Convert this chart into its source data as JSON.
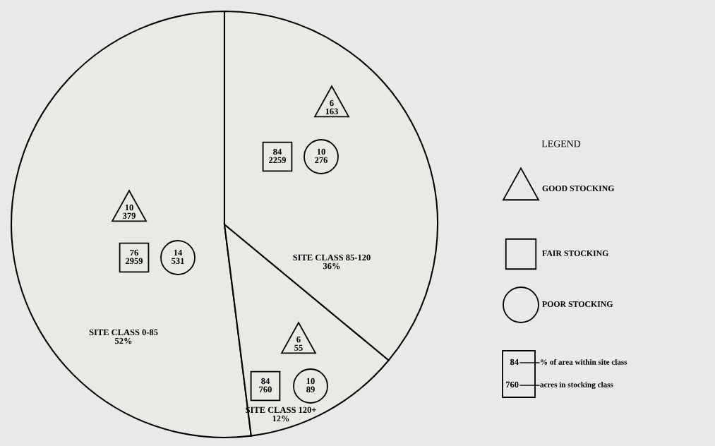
{
  "chart_data": {
    "type": "pie",
    "categories": [
      "SITE CLASS 0-85",
      "SITE CLASS 120+",
      "SITE CLASS 85-120"
    ],
    "values": [
      52,
      12,
      36
    ],
    "value_labels": [
      "52%",
      "12%",
      "36%"
    ],
    "colors": [
      "#e9e9e6",
      "#e9e9e6",
      "#e9e9e6"
    ],
    "legend_title": "LEGEND",
    "annotations": [
      "10\n379",
      "76\n2959",
      "14\n531",
      "6\n163",
      "84\n2259",
      "10\n276",
      "6\n55",
      "84\n760",
      "10\n89",
      "GOOD STOCKING",
      "FAIR STOCKING",
      "POOR STOCKING",
      "84",
      "760",
      "% of area within site class",
      "acres in stocking class"
    ]
  }
}
